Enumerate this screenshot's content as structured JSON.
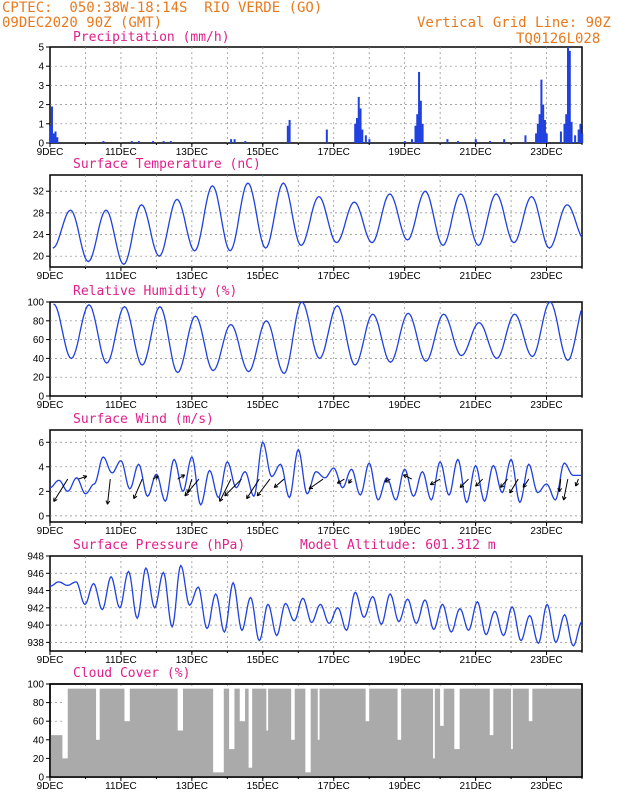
{
  "header": {
    "line1": "CPTEC:  050:38W-18:14S  RIO VERDE (GO)",
    "line2": "09DEC2020 90Z (GMT)",
    "right1": "Vertical Grid Line: 90Z",
    "right2": "TQ0126L028"
  },
  "colors": {
    "line": "#2040e0",
    "title": "#e0208c",
    "header": "#e87a1e",
    "cloud": "#aaaaaa",
    "vector": "#000000"
  },
  "chart_data": [
    {
      "type": "bar",
      "title": "Precipitation (mm/h)",
      "ylim": [
        0,
        5
      ],
      "yticks": [
        0,
        1,
        2,
        3,
        4,
        5
      ],
      "xticks": [
        "9DEC",
        "11DEC",
        "13DEC",
        "15DEC",
        "17DEC",
        "19DEC",
        "21DEC",
        "23DEC"
      ],
      "x_range_days": [
        0,
        15
      ],
      "series": [
        {
          "name": "precip",
          "points": [
            [
              0.0,
              0.9
            ],
            [
              0.05,
              1.9
            ],
            [
              0.1,
              0.5
            ],
            [
              0.15,
              0.6
            ],
            [
              0.2,
              0.3
            ],
            [
              1.5,
              0.1
            ],
            [
              2.3,
              0.1
            ],
            [
              2.5,
              0.1
            ],
            [
              2.9,
              0.1
            ],
            [
              3.2,
              0.1
            ],
            [
              3.4,
              0.1
            ],
            [
              5.1,
              0.2
            ],
            [
              5.2,
              0.2
            ],
            [
              5.5,
              0.1
            ],
            [
              6.7,
              0.9
            ],
            [
              6.75,
              1.2
            ],
            [
              7.8,
              0.7
            ],
            [
              8.6,
              1.0
            ],
            [
              8.65,
              1.3
            ],
            [
              8.7,
              2.4
            ],
            [
              8.75,
              1.8
            ],
            [
              8.8,
              0.7
            ],
            [
              8.9,
              0.4
            ],
            [
              9.0,
              0.2
            ],
            [
              10.0,
              0.1
            ],
            [
              10.2,
              0.2
            ],
            [
              10.3,
              0.9
            ],
            [
              10.35,
              1.5
            ],
            [
              10.4,
              3.7
            ],
            [
              10.45,
              2.2
            ],
            [
              10.5,
              1.0
            ],
            [
              11.2,
              0.2
            ],
            [
              11.5,
              0.1
            ],
            [
              12.0,
              0.2
            ],
            [
              12.4,
              0.1
            ],
            [
              12.8,
              0.2
            ],
            [
              13.4,
              0.4
            ],
            [
              13.7,
              0.5
            ],
            [
              13.75,
              1.0
            ],
            [
              13.8,
              1.5
            ],
            [
              13.85,
              3.3
            ],
            [
              13.9,
              2.0
            ],
            [
              13.95,
              1.2
            ],
            [
              14.0,
              0.5
            ],
            [
              14.4,
              0.6
            ],
            [
              14.5,
              1.0
            ],
            [
              14.55,
              1.5
            ],
            [
              14.6,
              5.0
            ],
            [
              14.65,
              4.8
            ],
            [
              14.7,
              1.1
            ],
            [
              14.8,
              0.4
            ],
            [
              14.9,
              0.7
            ],
            [
              14.95,
              1.0
            ],
            [
              15.0,
              0.5
            ]
          ]
        }
      ]
    },
    {
      "type": "line",
      "title": "Surface Temperature (nC)",
      "ylim": [
        18,
        35
      ],
      "yticks": [
        20,
        24,
        28,
        32
      ],
      "xticks": [
        "9DEC",
        "11DEC",
        "13DEC",
        "15DEC",
        "17DEC",
        "19DEC",
        "21DEC",
        "23DEC"
      ],
      "series": [
        {
          "name": "temperature",
          "mins": [
            21.5,
            19,
            18.5,
            20,
            21,
            21,
            21.5,
            22,
            22.5,
            22.5,
            23,
            22,
            22,
            22.5,
            21.5,
            23
          ],
          "maxs": [
            28.5,
            28.5,
            29.5,
            30.5,
            33,
            33.5,
            33.5,
            31,
            30,
            31.5,
            32,
            31.5,
            31.5,
            31,
            29.5
          ]
        }
      ]
    },
    {
      "type": "line",
      "title": "Relative Humidity (%)",
      "ylim": [
        0,
        100
      ],
      "yticks": [
        0,
        20,
        40,
        60,
        80,
        100
      ],
      "xticks": [
        "9DEC",
        "11DEC",
        "13DEC",
        "15DEC",
        "17DEC",
        "19DEC",
        "21DEC",
        "23DEC"
      ],
      "series": [
        {
          "name": "humidity",
          "maxs": [
            98,
            97,
            95,
            95,
            85,
            76,
            80,
            100,
            96,
            87,
            88,
            87,
            78,
            87,
            100,
            100
          ],
          "mins": [
            40,
            35,
            33,
            25,
            27,
            26,
            24,
            40,
            33,
            36,
            37,
            43,
            40,
            42,
            38
          ]
        }
      ]
    },
    {
      "type": "line",
      "title": "Surface Wind (m/s)",
      "ylim": [
        -0.5,
        7
      ],
      "yticks": [
        0,
        2,
        4,
        6
      ],
      "xticks": [
        "9DEC",
        "11DEC",
        "13DEC",
        "15DEC",
        "17DEC",
        "19DEC",
        "21DEC",
        "23DEC"
      ],
      "series": [
        {
          "name": "wind_speed",
          "values": [
            2.3,
            2.9,
            2.0,
            3.1,
            1.8,
            2.6,
            4.8,
            3.5,
            4.5,
            2.2,
            4.2,
            1.6,
            3.4,
            1.2,
            4.6,
            2.0,
            4.8,
            0.9,
            3.7,
            1.5,
            4.4,
            2.3,
            3.6,
            1.6,
            6.0,
            3.2,
            4.2,
            1.5,
            5.4,
            1.8,
            3.6,
            3.1,
            3.9,
            2.3,
            3.8,
            1.7,
            4.3,
            1.3,
            3.1,
            1.3,
            3.8,
            1.6,
            3.6,
            1.3,
            4.4,
            1.7,
            4.6,
            1.1,
            4.1,
            1.2,
            4.1,
            1.9,
            4.6,
            1.1,
            4.2,
            1.9,
            2.6,
            1.3,
            4.3,
            3.3,
            3.3
          ]
        }
      ],
      "vectors": [
        [
          0.5,
          -1.0,
          -1.6
        ],
        [
          0.8,
          0.6,
          0.2
        ],
        [
          1.7,
          -0.2,
          -1.8
        ],
        [
          2.6,
          -0.6,
          -1.4
        ],
        [
          2.9,
          0.4,
          0.2
        ],
        [
          3.6,
          0.5,
          0.3
        ],
        [
          4.0,
          -0.3,
          -1.0
        ],
        [
          4.2,
          -1.0,
          -1.2
        ],
        [
          5.1,
          -0.8,
          -1.6
        ],
        [
          5.4,
          -1.2,
          -1.2
        ],
        [
          5.9,
          -0.9,
          -1.4
        ],
        [
          6.2,
          -0.9,
          -1.2
        ],
        [
          6.6,
          -0.7,
          -0.6
        ],
        [
          7.7,
          -1.0,
          -0.7
        ],
        [
          8.3,
          -0.5,
          -0.3
        ],
        [
          8.5,
          -0.2,
          -0.3
        ],
        [
          9.6,
          -0.4,
          -0.2
        ],
        [
          10.2,
          -0.6,
          0.3
        ],
        [
          11.0,
          -0.7,
          -0.4
        ],
        [
          11.8,
          -0.6,
          -0.6
        ],
        [
          12.2,
          -0.5,
          -0.5
        ],
        [
          12.9,
          -0.5,
          -0.6
        ],
        [
          13.2,
          -0.6,
          -1.0
        ],
        [
          13.5,
          -0.4,
          -0.6
        ],
        [
          14.4,
          -0.1,
          -0.9
        ],
        [
          14.6,
          -0.3,
          -1.5
        ],
        [
          14.9,
          -0.2,
          -0.5
        ]
      ]
    },
    {
      "type": "line",
      "title": "Surface Pressure (hPa)",
      "subtitle": "Model Altitude: 601.312  m",
      "ylim": [
        937,
        948
      ],
      "yticks": [
        938,
        940,
        942,
        944,
        946,
        948
      ],
      "xticks": [
        "9DEC",
        "11DEC",
        "13DEC",
        "15DEC",
        "17DEC",
        "19DEC",
        "21DEC",
        "23DEC"
      ],
      "series": [
        {
          "name": "pressure",
          "values": [
            944.5,
            945,
            944.6,
            945.0,
            942.4,
            944.8,
            941.8,
            945.6,
            942.0,
            946.2,
            940.8,
            946.6,
            942.0,
            946.1,
            939.8,
            946.9,
            942.3,
            944.4,
            939.6,
            943.6,
            939.2,
            944.9,
            939.4,
            943.2,
            938.2,
            942.4,
            938.8,
            942.5,
            940.5,
            943.1,
            940.3,
            942.4,
            940.2,
            942.0,
            939.4,
            943.8,
            940.9,
            943.3,
            940.1,
            943.6,
            940.4,
            943.0,
            940.2,
            942.9,
            939.5,
            942.4,
            939.2,
            941.9,
            939.4,
            942.7,
            938.9,
            941.6,
            938.8,
            942.1,
            938.2,
            941.1,
            937.9,
            942.4,
            938.0,
            941.2,
            937.6,
            940.4
          ]
        }
      ]
    },
    {
      "type": "bar",
      "title": "Cloud Cover (%)",
      "ylim": [
        0,
        100
      ],
      "yticks": [
        0,
        20,
        40,
        60,
        80,
        100
      ],
      "xticks": [
        "9DEC",
        "11DEC",
        "13DEC",
        "15DEC",
        "17DEC",
        "19DEC",
        "21DEC",
        "23DEC"
      ],
      "series": [
        {
          "name": "cloud",
          "base": 95,
          "gaps": [
            [
              0.35,
              0.5,
              20
            ],
            [
              1.3,
              1.4,
              40
            ],
            [
              2.1,
              2.25,
              60
            ],
            [
              3.6,
              3.75,
              50
            ],
            [
              4.6,
              4.9,
              5
            ],
            [
              5.05,
              5.2,
              30
            ],
            [
              5.35,
              5.5,
              60
            ],
            [
              5.6,
              5.7,
              10
            ],
            [
              6.1,
              6.15,
              50
            ],
            [
              6.8,
              6.9,
              40
            ],
            [
              7.2,
              7.35,
              5
            ],
            [
              7.55,
              7.6,
              40
            ],
            [
              8.9,
              9.0,
              60
            ],
            [
              9.8,
              9.9,
              40
            ],
            [
              10.8,
              10.85,
              20
            ],
            [
              11.0,
              11.1,
              55
            ],
            [
              11.4,
              11.55,
              30
            ],
            [
              12.4,
              12.5,
              45
            ],
            [
              13.0,
              13.05,
              30
            ],
            [
              13.5,
              13.6,
              60
            ]
          ]
        }
      ]
    }
  ]
}
